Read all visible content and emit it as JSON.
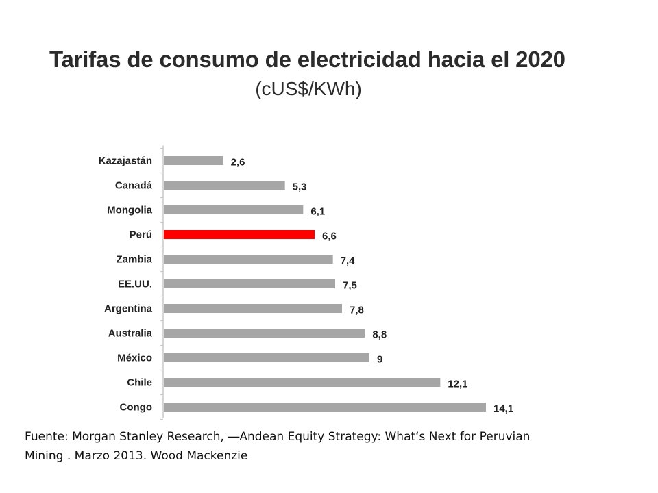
{
  "chart_data": {
    "type": "bar",
    "orientation": "horizontal",
    "title": "Tarifas de consumo de electricidad hacia el 2020",
    "subtitle": "(cUS$/KWh)",
    "categories": [
      "Kazajastán",
      "Canadá",
      "Mongolia",
      "Perú",
      "Zambia",
      "EE.UU.",
      "Argentina",
      "Australia",
      "México",
      "Chile",
      "Congo"
    ],
    "values": [
      2.6,
      5.3,
      6.1,
      6.6,
      7.4,
      7.5,
      7.8,
      8.8,
      9,
      12.1,
      14.1
    ],
    "value_labels": [
      "2,6",
      "5,3",
      "6,1",
      "6,6",
      "7,4",
      "7,5",
      "7,8",
      "8,8",
      "9",
      "12,1",
      "14,1"
    ],
    "highlight_category": "Perú",
    "colors": {
      "bar": "#a6a6a6",
      "highlight": "#ff0000",
      "axis": "#c8c8c8"
    },
    "xlim": [
      0,
      14.1
    ],
    "grid": false,
    "legend": "none"
  },
  "source": {
    "line1": "Fuente: Morgan Stanley Research, ―Andean Equity Strategy: What‘s Next for Peruvian",
    "line2": "Mining . Marzo 2013. Wood Mackenzie"
  }
}
